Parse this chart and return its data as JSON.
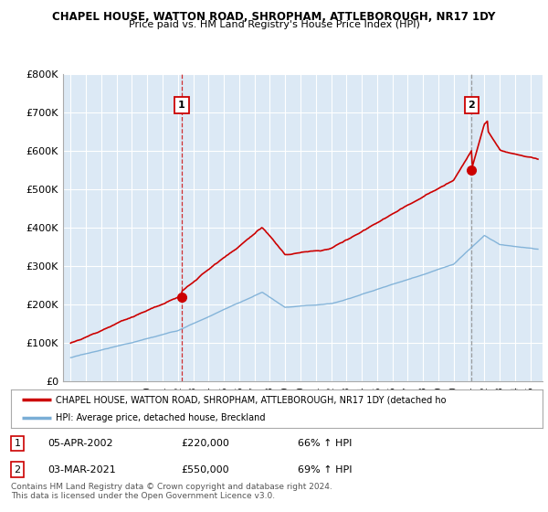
{
  "title1": "CHAPEL HOUSE, WATTON ROAD, SHROPHAM, ATTLEBOROUGH, NR17 1DY",
  "title2": "Price paid vs. HM Land Registry's House Price Index (HPI)",
  "legend_line1": "CHAPEL HOUSE, WATTON ROAD, SHROPHAM, ATTLEBOROUGH, NR17 1DY (detached ho",
  "legend_line2": "HPI: Average price, detached house, Breckland",
  "ann1_num": "1",
  "ann1_date": "05-APR-2002",
  "ann1_price": "£220,000",
  "ann1_hpi": "66% ↑ HPI",
  "ann1_x": 2002.25,
  "ann1_y": 220000,
  "ann2_num": "2",
  "ann2_date": "03-MAR-2021",
  "ann2_price": "£550,000",
  "ann2_hpi": "69% ↑ HPI",
  "ann2_x": 2021.17,
  "ann2_y": 550000,
  "footer1": "Contains HM Land Registry data © Crown copyright and database right 2024.",
  "footer2": "This data is licensed under the Open Government Licence v3.0.",
  "ylim": [
    0,
    800000
  ],
  "yticks": [
    0,
    100000,
    200000,
    300000,
    400000,
    500000,
    600000,
    700000,
    800000
  ],
  "ytick_labels": [
    "£0",
    "£100K",
    "£200K",
    "£300K",
    "£400K",
    "£500K",
    "£600K",
    "£700K",
    "£800K"
  ],
  "xlim_start": 1994.5,
  "xlim_end": 2025.8,
  "red_line_color": "#cc0000",
  "blue_line_color": "#7aaed6",
  "bg_color": "#dce9f5",
  "vline_color": "#cc0000",
  "white": "#ffffff",
  "grid_color": "#ffffff"
}
